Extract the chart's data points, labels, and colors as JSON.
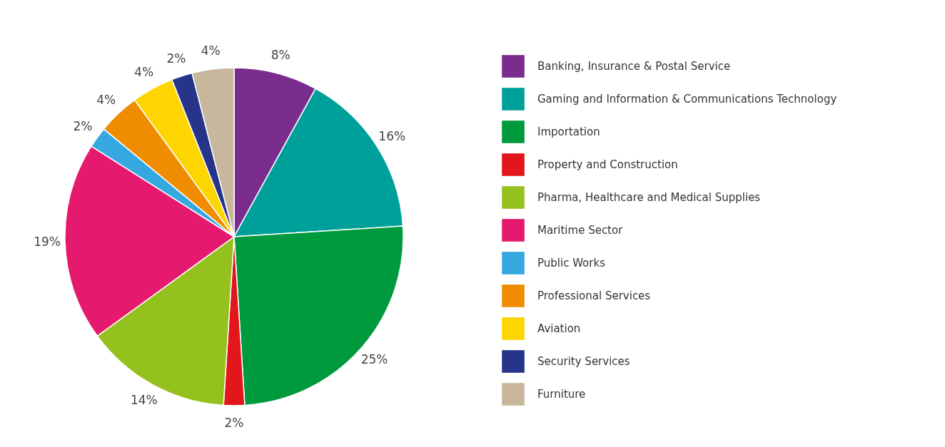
{
  "chart_data": {
    "type": "pie",
    "categories": [
      "Banking, Insurance & Postal Service",
      "Gaming and Information & Communications Technology",
      "Importation",
      "Property and Construction",
      "Pharma, Healthcare and Medical Supplies",
      "Maritime Sector",
      "Public Works",
      "Professional Services",
      "Aviation",
      "Security Services",
      "Furniture"
    ],
    "values": [
      8,
      16,
      25,
      2,
      14,
      19,
      2,
      4,
      4,
      2,
      4
    ],
    "value_labels": [
      "8%",
      "16%",
      "25%",
      "2%",
      "14%",
      "19%",
      "2%",
      "4%",
      "4%",
      "2%",
      "4%"
    ],
    "colors": [
      "#7b2d8e",
      "#00a09a",
      "#009a3e",
      "#e2161b",
      "#95c11f",
      "#e5196e",
      "#35a8e0",
      "#f08c00",
      "#fdd500",
      "#263489",
      "#c8b79c"
    ],
    "legend": "right"
  }
}
